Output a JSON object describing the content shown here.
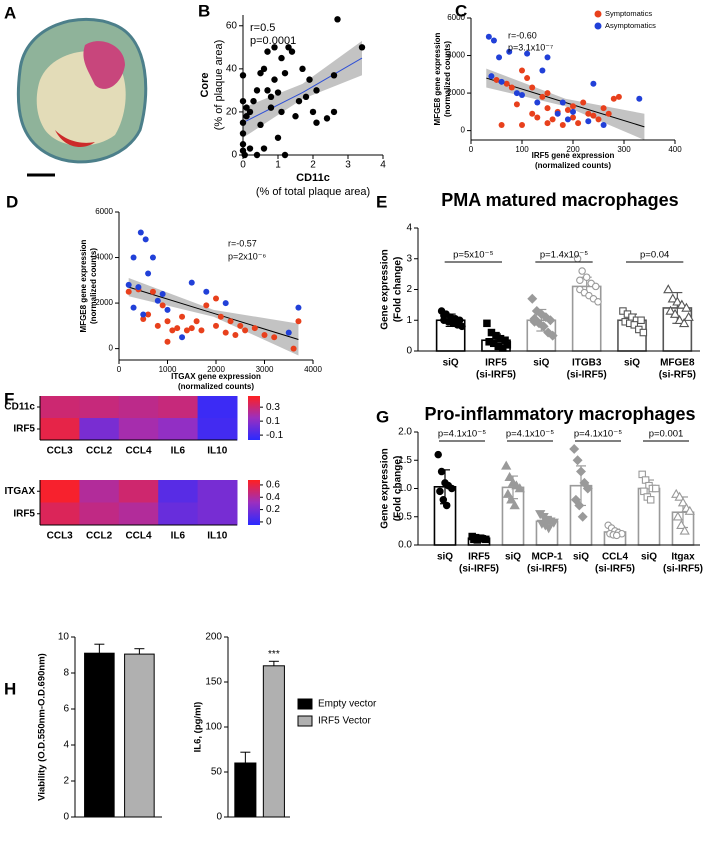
{
  "chart_data": [
    {
      "type": "image",
      "panel": "A"
    },
    {
      "type": "scatter",
      "panel": "B",
      "x": [
        0,
        0,
        0,
        0,
        0,
        0,
        0.05,
        0.1,
        0.1,
        0.2,
        0.2,
        0.3,
        0.4,
        0.4,
        0.5,
        0.5,
        0.6,
        0.6,
        0.7,
        0.7,
        0.8,
        0.8,
        0.9,
        0.9,
        1.0,
        1.0,
        1.1,
        1.1,
        1.2,
        1.2,
        1.3,
        1.4,
        1.5,
        1.6,
        1.7,
        1.8,
        1.9,
        2.0,
        2.1,
        2.1,
        2.4,
        2.6,
        2.6,
        2.7,
        3.4
      ],
      "values": [
        2,
        5,
        10,
        15,
        25,
        37,
        0,
        18,
        22,
        20,
        3,
        25,
        0,
        30,
        14,
        38,
        40,
        3,
        30,
        48,
        22,
        27,
        35,
        50,
        8,
        29,
        20,
        45,
        38,
        0,
        50,
        48,
        18,
        25,
        40,
        27,
        35,
        20,
        15,
        30,
        17,
        20,
        37,
        63,
        50
      ],
      "color": "#000000",
      "xlim": [
        0,
        4
      ],
      "xticks": [
        0,
        1,
        2,
        3,
        4
      ],
      "ylim": [
        0,
        65
      ],
      "yticks": [
        0,
        20,
        40,
        60
      ],
      "xlabel": [
        "CD11c",
        "(% of total plaque area)"
      ],
      "ylabel": [
        "Core",
        "(% of plaque area)"
      ],
      "annotations": [
        "r=0.5",
        "p=0.0001"
      ],
      "trend": {
        "x": [
          0,
          1.7,
          3.4
        ],
        "values": [
          15,
          29,
          45
        ],
        "lower": [
          8,
          26,
          37
        ],
        "upper": [
          22,
          33,
          53
        ],
        "color": "#2e4fd6",
        "band_color": "#b8b8b8"
      }
    },
    {
      "type": "scatter",
      "panel": "C",
      "series": [
        {
          "name": "Symptomatics",
          "color": "#e8401c",
          "x": [
            50,
            70,
            80,
            90,
            100,
            110,
            120,
            120,
            130,
            140,
            150,
            150,
            160,
            170,
            180,
            190,
            200,
            200,
            210,
            220,
            230,
            240,
            250,
            260,
            270,
            280,
            290,
            150,
            100,
            60
          ],
          "values": [
            2700,
            2500,
            2300,
            1400,
            3200,
            2800,
            2300,
            900,
            700,
            1800,
            1200,
            400,
            600,
            1000,
            300,
            1100,
            700,
            1300,
            400,
            1500,
            900,
            800,
            600,
            1200,
            900,
            1700,
            1800,
            2000,
            300,
            300
          ]
        },
        {
          "name": "Asymptomatics",
          "color": "#2140d8",
          "x": [
            35,
            45,
            55,
            75,
            40,
            60,
            90,
            110,
            100,
            150,
            140,
            130,
            170,
            180,
            190,
            200,
            230,
            260,
            330,
            240
          ],
          "values": [
            5000,
            4800,
            3900,
            4200,
            2900,
            2600,
            2000,
            4100,
            1900,
            3900,
            3200,
            1500,
            900,
            1500,
            600,
            1000,
            500,
            300,
            1700,
            2500
          ]
        }
      ],
      "legend": "upper right",
      "xlim": [
        0,
        400
      ],
      "xticks": [
        0,
        100,
        200,
        300,
        400
      ],
      "ylim": [
        -500,
        6000
      ],
      "yticks": [
        0,
        2000,
        4000,
        6000
      ],
      "xlabel": [
        "IRF5 gene expression",
        "(normalized counts)"
      ],
      "ylabel": [
        "MFGE8 gene expression",
        "(normalized counts)"
      ],
      "annotations": [
        "r=-0.60",
        "p=3.1x10⁻⁷"
      ],
      "trend": {
        "x": [
          30,
          185,
          340
        ],
        "values": [
          2800,
          1500,
          200
        ],
        "lower": [
          2300,
          1300,
          -500
        ],
        "upper": [
          3300,
          1700,
          900
        ],
        "color": "#000000",
        "band_color": "#b8b8b8"
      }
    },
    {
      "type": "scatter",
      "panel": "D",
      "series": [
        {
          "color": "#e8401c",
          "x": [
            200,
            400,
            500,
            600,
            700,
            800,
            900,
            1000,
            1100,
            1200,
            1300,
            1400,
            1500,
            1600,
            1700,
            1800,
            2000,
            2100,
            2200,
            2300,
            2400,
            2500,
            2600,
            2800,
            3000,
            3200,
            3700,
            3600,
            1000,
            2000
          ],
          "values": [
            2500,
            2600,
            1300,
            1500,
            2500,
            1000,
            1900,
            1200,
            800,
            900,
            1400,
            800,
            900,
            1200,
            800,
            1900,
            1000,
            1400,
            700,
            1200,
            600,
            1000,
            800,
            900,
            600,
            500,
            1200,
            0,
            300,
            2200
          ]
        },
        {
          "color": "#2140d8",
          "x": [
            200,
            300,
            400,
            450,
            550,
            600,
            700,
            500,
            300,
            800,
            900,
            1000,
            1500,
            1800,
            2200,
            3700,
            3500,
            1300
          ],
          "values": [
            2800,
            4000,
            2700,
            5100,
            4800,
            3300,
            4000,
            1500,
            1800,
            2100,
            2400,
            1700,
            2900,
            2500,
            2000,
            1800,
            700,
            500
          ]
        }
      ],
      "xlim": [
        0,
        4000
      ],
      "xticks": [
        0,
        1000,
        2000,
        3000,
        4000
      ],
      "ylim": [
        -500,
        6000
      ],
      "yticks": [
        0,
        2000,
        4000,
        6000
      ],
      "xlabel": [
        "ITGAX gene expression",
        "(normalized counts)"
      ],
      "ylabel": [
        "MFGE8 gene expression",
        "(normalized counts)"
      ],
      "annotations": [
        "r=-0.57",
        "p=2x10⁻⁶"
      ],
      "trend": {
        "x": [
          200,
          1950,
          3700
        ],
        "values": [
          2700,
          1550,
          400
        ],
        "lower": [
          2300,
          1400,
          -300
        ],
        "upper": [
          3100,
          1700,
          1100
        ],
        "color": "#000000",
        "band_color": "#b8b8b8"
      }
    },
    {
      "type": "bar",
      "panel": "E",
      "title": "PMA matured macrophages",
      "ylabel": [
        "Gene expression",
        "(Fold change)"
      ],
      "categories": [
        [
          "siQ"
        ],
        [
          "IRF5",
          "(si-IRF5)"
        ],
        [
          "siQ"
        ],
        [
          "ITGB3",
          "(si-IRF5)"
        ],
        [
          "siQ"
        ],
        [
          "MFGE8",
          "(si-RF5)"
        ]
      ],
      "values": [
        1.0,
        0.35,
        1.0,
        2.1,
        1.0,
        1.4
      ],
      "errors": [
        0.2,
        0.2,
        0.35,
        0.3,
        0.2,
        0.5
      ],
      "edge_colors": [
        "#000000",
        "#000000",
        "#9a9a9a",
        "#9a9a9a",
        "#555555",
        "#555555"
      ],
      "markers": [
        "circle",
        "square",
        "diamond",
        "circle-open",
        "square-open",
        "triangle-open"
      ],
      "points": [
        [
          1.3,
          1.2,
          1.1,
          1.05,
          1.0,
          1.0,
          0.95,
          0.9,
          0.85,
          0.8,
          1.15
        ],
        [
          0.9,
          0.6,
          0.5,
          0.4,
          0.35,
          0.3,
          0.25,
          0.15,
          0.1,
          0.2,
          0.3
        ],
        [
          1.7,
          1.3,
          1.2,
          1.1,
          1.0,
          0.95,
          0.9,
          0.8,
          0.6,
          0.5,
          1.05
        ],
        [
          3.0,
          2.6,
          2.4,
          2.2,
          2.1,
          2.0,
          1.9,
          1.8,
          1.7,
          1.6,
          2.3
        ],
        [
          1.3,
          1.2,
          1.1,
          1.0,
          1.0,
          0.95,
          0.9,
          0.85,
          0.7,
          0.6
        ],
        [
          2.0,
          1.7,
          1.6,
          1.5,
          1.4,
          1.3,
          1.2,
          1.0,
          0.9,
          1.1
        ]
      ],
      "significance": [
        "p=5x10⁻⁵",
        "p=1.4x10⁻⁵",
        "p=0.04"
      ],
      "ylim": [
        0,
        4
      ],
      "yticks": [
        0,
        1,
        2,
        3,
        4
      ]
    },
    {
      "type": "heatmap",
      "panel": "F",
      "rows": [
        "CD11c",
        "IRF5"
      ],
      "columns": [
        "CCL3",
        "CCL2",
        "CCL4",
        "IL6",
        "IL10"
      ],
      "values": [
        [
          0.3,
          0.28,
          0.25,
          0.28,
          -0.12
        ],
        [
          0.38,
          0.05,
          0.18,
          0.12,
          -0.1
        ]
      ],
      "colormap": [
        "#2a2aff",
        "#9b2fbf",
        "#ff2020"
      ],
      "clim": [
        -0.17,
        0.46
      ],
      "cticks": [
        0.3,
        0.1,
        -0.1
      ]
    },
    {
      "type": "heatmap",
      "rows": [
        "ITGAX",
        "IRF5"
      ],
      "columns": [
        "CCL3",
        "CCL2",
        "CCL4",
        "IL6",
        "IL10"
      ],
      "values": [
        [
          0.65,
          0.4,
          0.5,
          0.1,
          0.2
        ],
        [
          0.55,
          0.45,
          0.4,
          0.15,
          0.2
        ]
      ],
      "colormap": [
        "#2a2aff",
        "#9b2fbf",
        "#ff2020"
      ],
      "clim": [
        -0.05,
        0.68
      ],
      "cticks": [
        0.6,
        0.4,
        0.2,
        0
      ]
    },
    {
      "type": "bar",
      "panel": "G",
      "title": "Pro-inflammatory macrophages",
      "ylabel": [
        "Gene expression",
        "(Fold change)"
      ],
      "categories": [
        [
          "siQ"
        ],
        [
          "IRF5",
          "(si-IRF5)"
        ],
        [
          "siQ"
        ],
        [
          "MCP-1",
          "(si-IRF5)"
        ],
        [
          "siQ"
        ],
        [
          "CCL4",
          "(si-IRF5)"
        ],
        [
          "siQ"
        ],
        [
          "Itgax",
          "(si-IRF5)"
        ]
      ],
      "values": [
        1.03,
        0.12,
        1.02,
        0.42,
        1.05,
        0.23,
        1.0,
        0.58
      ],
      "errors": [
        0.3,
        0.03,
        0.2,
        0.07,
        0.35,
        0.05,
        0.15,
        0.27
      ],
      "edge_colors": [
        "#000000",
        "#000000",
        "#9a9a9a",
        "#9a9a9a",
        "#9a9a9a",
        "#9a9a9a",
        "#9a9a9a",
        "#9a9a9a"
      ],
      "markers": [
        "circle",
        "square",
        "triangle",
        "triangle-down",
        "diamond",
        "circle-open",
        "square-open",
        "triangle-open"
      ],
      "points": [
        [
          1.6,
          1.3,
          1.1,
          1.05,
          1.0,
          0.95,
          0.8,
          0.7
        ],
        [
          0.15,
          0.13,
          0.12,
          0.11,
          0.1,
          0.1,
          0.09,
          0.12
        ],
        [
          1.4,
          1.2,
          1.1,
          1.05,
          1.0,
          0.9,
          0.8,
          0.7
        ],
        [
          0.55,
          0.5,
          0.45,
          0.42,
          0.4,
          0.38,
          0.35,
          0.3
        ],
        [
          1.7,
          1.5,
          1.3,
          1.1,
          1.0,
          0.8,
          0.7,
          0.5
        ],
        [
          0.35,
          0.3,
          0.25,
          0.22,
          0.2,
          0.2,
          0.18,
          0.17
        ],
        [
          1.25,
          1.15,
          1.05,
          1.0,
          1.0,
          0.95,
          0.85,
          0.8
        ],
        [
          0.9,
          0.85,
          0.75,
          0.65,
          0.6,
          0.5,
          0.35,
          0.25
        ]
      ],
      "significance": [
        "p=4.1x10⁻⁵",
        "p=4.1x10⁻⁵",
        "p=4.1x10⁻⁵",
        "p=0.001"
      ],
      "ylim": [
        0,
        2
      ],
      "yticks": [
        {
          "value": 0,
          "label": "0.0"
        },
        0.5,
        {
          "value": 1,
          "label": "1.0"
        },
        1.5,
        {
          "value": 2,
          "label": "2.0"
        }
      ]
    },
    {
      "type": "grouped-bar",
      "panel": "H",
      "series": [
        {
          "name": "Empty vector",
          "color": "#000000",
          "values": [
            9.1,
            60
          ],
          "errors": [
            0.5,
            12
          ],
          "annotations": [
            null,
            null
          ]
        },
        {
          "name": "IRF5 Vector",
          "color": "#b0b0b0",
          "values": [
            9.05,
            168
          ],
          "errors": [
            0.3,
            5
          ],
          "annotations": [
            null,
            "***"
          ]
        }
      ],
      "axes": [
        {
          "ylabel": "Viability (O.D.550nm-O.D.690nm)",
          "ylim": [
            0,
            10
          ],
          "yticks": [
            0,
            2,
            4,
            6,
            8,
            10
          ]
        },
        {
          "ylabel": "IL6, (pg/ml)",
          "ylim": [
            0,
            200
          ],
          "yticks": [
            0,
            50,
            100,
            150,
            200
          ]
        }
      ],
      "legend": "right"
    }
  ]
}
